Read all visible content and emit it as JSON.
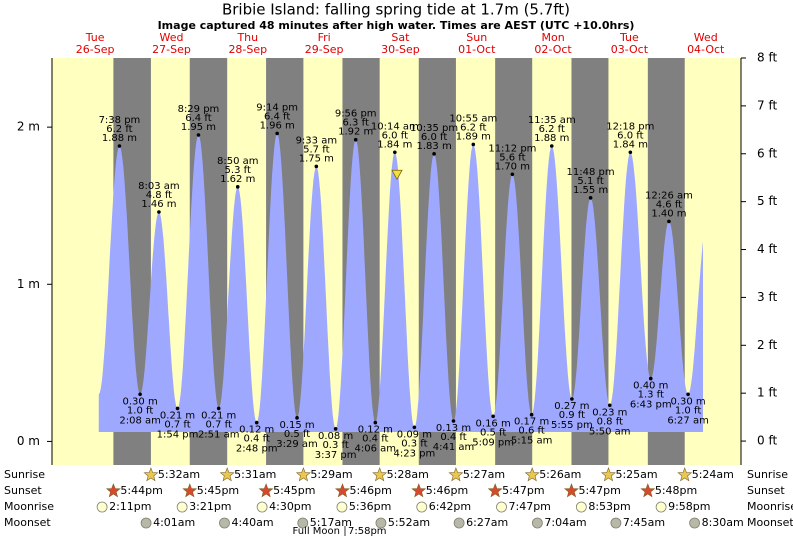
{
  "chart_data": {
    "type": "tide",
    "title": "Bribie Island: falling  spring tide at 1.7m (5.7ft)",
    "subtitle": "Image captured 48 minutes after high water. Times are AEST (UTC +10.0hrs)",
    "days": [
      {
        "dow": "Tue",
        "date": "26-Sep"
      },
      {
        "dow": "Wed",
        "date": "27-Sep"
      },
      {
        "dow": "Thu",
        "date": "28-Sep"
      },
      {
        "dow": "Fri",
        "date": "29-Sep"
      },
      {
        "dow": "Sat",
        "date": "30-Sep"
      },
      {
        "dow": "Sun",
        "date": "01-Oct"
      },
      {
        "dow": "Mon",
        "date": "02-Oct"
      },
      {
        "dow": "Tue",
        "date": "03-Oct"
      },
      {
        "dow": "Wed",
        "date": "04-Oct"
      }
    ],
    "ylim": [
      -0.15,
      2.44
    ],
    "yticks": [
      {
        "value": 0,
        "label": "0 m"
      },
      {
        "value": 1,
        "label": "1 m"
      },
      {
        "value": 2,
        "label": "2 m"
      }
    ],
    "y2lim": [
      -0.5,
      8.0
    ],
    "y2ticks": [
      {
        "value": 0,
        "label": "0 ft"
      },
      {
        "value": 1,
        "label": "1 ft"
      },
      {
        "value": 2,
        "label": "2 ft"
      },
      {
        "value": 3,
        "label": "3 ft"
      },
      {
        "value": 4,
        "label": "4 ft"
      },
      {
        "value": 5,
        "label": "5 ft"
      },
      {
        "value": 6,
        "label": "6 ft"
      },
      {
        "value": 7,
        "label": "7 ft"
      },
      {
        "value": 8,
        "label": "8 ft"
      }
    ],
    "color": "#9fa8ff",
    "tides": {
      "times": [
        "7:38 pm",
        "2:08 am",
        "8:03 am",
        "1:54 pm",
        "8:29 pm",
        "2:51 am",
        "8:50 am",
        "2:48 pm",
        "9:14 pm",
        "3:29 am",
        "9:33 am",
        "3:37 pm",
        "9:56 pm",
        "4:06 am",
        "10:14 am",
        "4:23 pm",
        "10:35 pm",
        "4:41 am",
        "10:55 am",
        "5:09 pm",
        "11:12 pm",
        "5:15 am",
        "11:35 am",
        "5:55 pm",
        "11:48 pm",
        "5:50 am",
        "12:18 pm",
        "6:43 pm",
        "12:26 am",
        "6:27 am"
      ],
      "values": [
        1.88,
        0.3,
        1.46,
        0.21,
        1.95,
        0.21,
        1.62,
        0.12,
        1.96,
        0.15,
        1.75,
        0.08,
        1.92,
        0.12,
        1.84,
        0.09,
        1.83,
        0.13,
        1.89,
        0.16,
        1.7,
        0.17,
        1.88,
        0.27,
        1.55,
        0.23,
        1.84,
        0.4,
        1.4,
        0.3
      ],
      "value_labels": [
        "1.88 m",
        "0.30 m",
        "1.46 m",
        "0.21 m",
        "1.95 m",
        "0.21 m",
        "1.62 m",
        "0.12 m",
        "1.96 m",
        "0.15 m",
        "1.75 m",
        "0.08 m",
        "1.92 m",
        "0.12 m",
        "1.84 m",
        "0.09 m",
        "1.83 m",
        "0.13 m",
        "1.89 m",
        "0.16 m",
        "1.70 m",
        "0.17 m",
        "1.88 m",
        "0.27 m",
        "1.55 m",
        "0.23 m",
        "1.84 m",
        "0.40 m",
        "1.40 m",
        "0.30 m"
      ],
      "ft_labels": [
        "6.2 ft",
        "1.0 ft",
        "4.8 ft",
        "0.7 ft",
        "6.4 ft",
        "0.7 ft",
        "5.3 ft",
        "0.4 ft",
        "6.4 ft",
        "0.5 ft",
        "5.7 ft",
        "0.3 ft",
        "6.3 ft",
        "0.4 ft",
        "6.0 ft",
        "0.3 ft",
        "6.0 ft",
        "0.4 ft",
        "6.2 ft",
        "0.5 ft",
        "5.6 ft",
        "0.6 ft",
        "6.2 ft",
        "0.9 ft",
        "5.1 ft",
        "0.8 ft",
        "6.0 ft",
        "1.3 ft",
        "4.6 ft",
        "1.0 ft"
      ]
    },
    "now": {
      "value": 1.7,
      "color": "#f0e040"
    },
    "rows": {
      "sunrise": {
        "label": "Sunrise",
        "times": [
          "5:32am",
          "5:31am",
          "5:29am",
          "5:28am",
          "5:27am",
          "5:26am",
          "5:25am",
          "5:24am"
        ]
      },
      "sunset": {
        "label": "Sunset",
        "times": [
          "5:44pm",
          "5:45pm",
          "5:45pm",
          "5:46pm",
          "5:46pm",
          "5:47pm",
          "5:47pm",
          "5:48pm"
        ]
      },
      "moonrise": {
        "label": "Moonrise",
        "times": [
          "2:11pm",
          "3:21pm",
          "4:30pm",
          "5:36pm",
          "6:42pm",
          "7:47pm",
          "8:53pm",
          "9:58pm"
        ]
      },
      "moonset": {
        "label": "Moonset",
        "times": [
          "4:01am",
          "4:40am",
          "5:17am",
          "5:52am",
          "6:27am",
          "7:04am",
          "7:45am",
          "8:30am"
        ]
      }
    },
    "full_moon": {
      "label": "Full Moon",
      "time": "7:58pm"
    }
  }
}
